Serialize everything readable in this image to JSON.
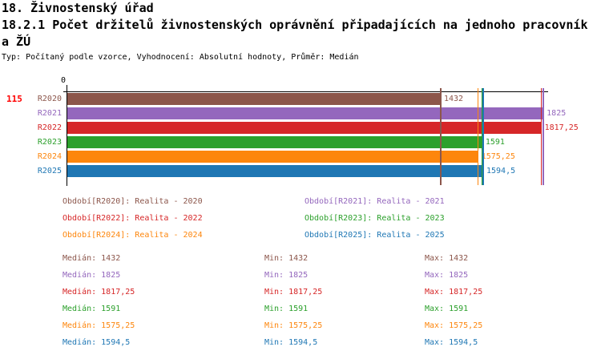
{
  "header": {
    "line1": "18. Živnostenský úřad",
    "line2": "18.2.1 Počet držitelů živnostenských oprávnění připadajících na jednoho pracovník",
    "line3": "a ŽÚ",
    "meta": "Typ: Počítaný podle vzorce, Vyhodnocení: Absolutní hodnoty, Průměr: Medián"
  },
  "indicator_number": "115",
  "axis": {
    "origin_label": "0"
  },
  "colors": {
    "indicator_red": "#ff0000",
    "axis_black": "#000000",
    "series": [
      "#8c564b",
      "#9467bd",
      "#d62728",
      "#2ca02c",
      "#fd860d",
      "#1f77b4"
    ]
  },
  "chart_data": {
    "type": "bar",
    "orientation": "horizontal",
    "title": "18.2.1 Počet držitelů živnostenských oprávnění připadajících na jednoho pracovníka ŽÚ",
    "categories": [
      "R2020",
      "R2021",
      "R2022",
      "R2023",
      "R2024",
      "R2025"
    ],
    "values": [
      1432,
      1825,
      1817.25,
      1591,
      1575.25,
      1594.5
    ],
    "value_labels": [
      "1432",
      "1825",
      "1817,25",
      "1591",
      "1575,25",
      "1594,5"
    ],
    "series_colors": [
      "#8c564b",
      "#9467bd",
      "#d62728",
      "#2ca02c",
      "#fd860d",
      "#1f77b4"
    ],
    "median_marker_values": [
      1432,
      1825,
      1817.25,
      1591,
      1575.25,
      1594.5
    ],
    "xlim": [
      0,
      2045
    ],
    "x_origin_tick": "0",
    "grid": false,
    "legend_position": "below"
  },
  "legend": {
    "items": [
      {
        "label": "Období[R2020]: Realita - 2020",
        "color": "#8c564b"
      },
      {
        "label": "Období[R2021]: Realita - 2021",
        "color": "#9467bd"
      },
      {
        "label": "Období[R2022]: Realita - 2022",
        "color": "#d62728"
      },
      {
        "label": "Období[R2023]: Realita - 2023",
        "color": "#2ca02c"
      },
      {
        "label": "Období[R2024]: Realita - 2024",
        "color": "#fd860d"
      },
      {
        "label": "Období[R2025]: Realita - 2025",
        "color": "#1f77b4"
      }
    ]
  },
  "stats": {
    "labels": {
      "median": "Medián",
      "min": "Min",
      "max": "Max"
    },
    "rows": [
      {
        "median": "1432",
        "min": "1432",
        "max": "1432",
        "color": "#8c564b"
      },
      {
        "median": "1825",
        "min": "1825",
        "max": "1825",
        "color": "#9467bd"
      },
      {
        "median": "1817,25",
        "min": "1817,25",
        "max": "1817,25",
        "color": "#d62728"
      },
      {
        "median": "1591",
        "min": "1591",
        "max": "1591",
        "color": "#2ca02c"
      },
      {
        "median": "1575,25",
        "min": "1575,25",
        "max": "1575,25",
        "color": "#fd860d"
      },
      {
        "median": "1594,5",
        "min": "1594,5",
        "max": "1594,5",
        "color": "#1f77b4"
      }
    ]
  }
}
